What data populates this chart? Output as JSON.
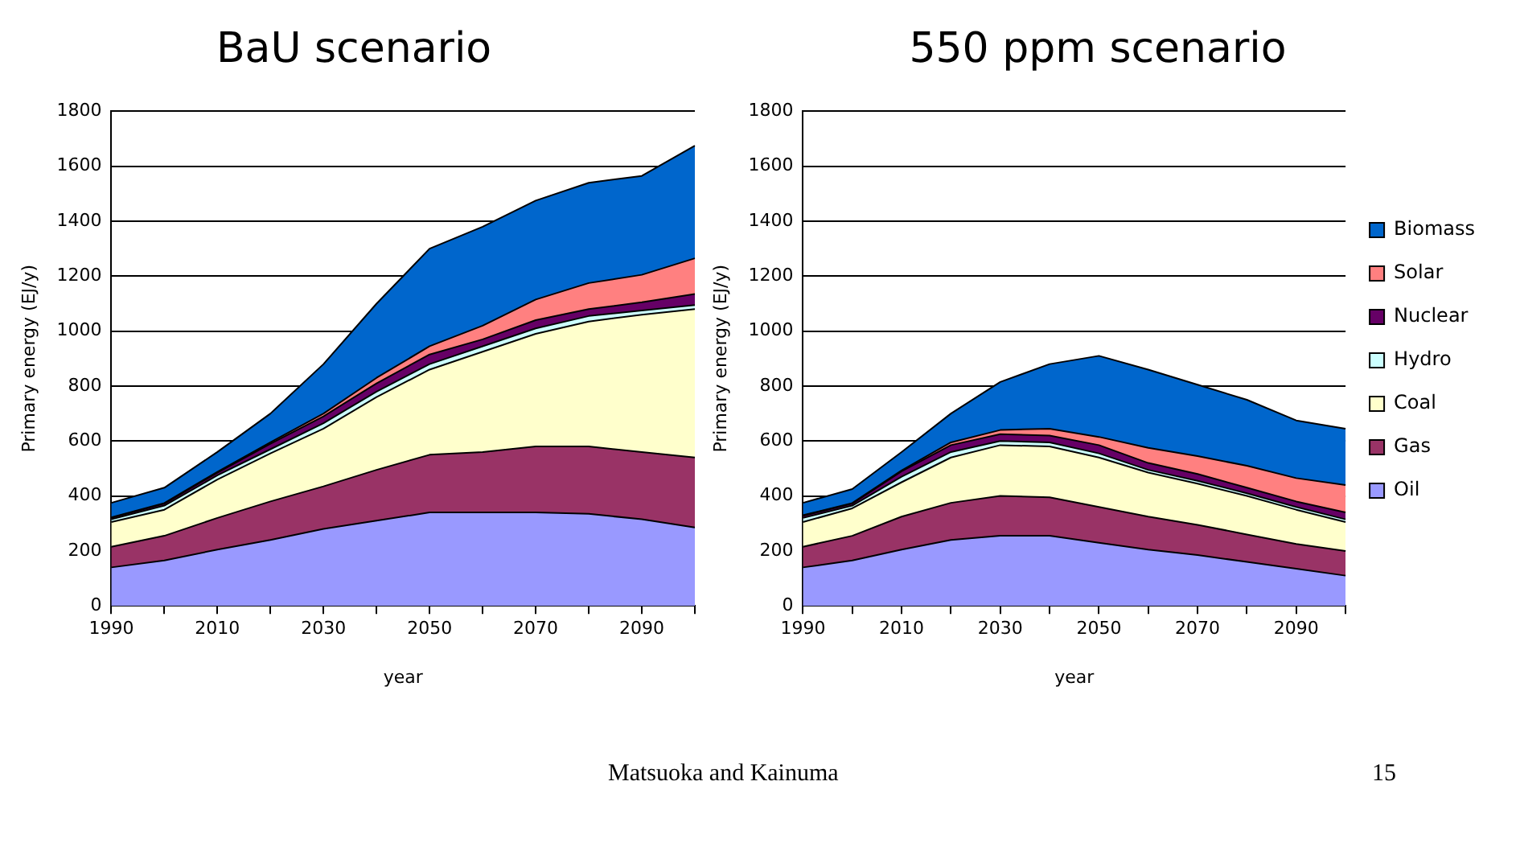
{
  "chart_data": [
    {
      "type": "area",
      "title": "BaU scenario",
      "xlabel": "year",
      "ylabel": "Primary energy (EJ/y)",
      "stacked": true,
      "grid": "y",
      "legend": false,
      "categories": [
        "1990",
        null,
        "2010",
        null,
        "2030",
        null,
        "2050",
        null,
        "2070",
        null,
        "2090",
        null
      ],
      "ylim": [
        0,
        1800
      ],
      "yticks": [
        0,
        200,
        400,
        600,
        800,
        1000,
        1200,
        1400,
        1600,
        1800
      ],
      "series": [
        {
          "color": "#9999ff",
          "values": [
            140,
            165,
            205,
            240,
            280,
            310,
            340,
            340,
            340,
            335,
            315,
            285
          ]
        },
        {
          "color": "#993366",
          "values": [
            75,
            90,
            115,
            140,
            155,
            185,
            210,
            220,
            240,
            245,
            245,
            255
          ]
        },
        {
          "color": "#ffffcc",
          "values": [
            90,
            95,
            140,
            175,
            210,
            265,
            310,
            365,
            410,
            455,
            500,
            540
          ]
        },
        {
          "color": "#ccffff",
          "values": [
            10,
            15,
            15,
            15,
            20,
            20,
            20,
            20,
            20,
            20,
            15,
            15
          ]
        },
        {
          "color": "#660066",
          "values": [
            5,
            7,
            10,
            20,
            25,
            30,
            35,
            25,
            30,
            25,
            30,
            40
          ]
        },
        {
          "color": "#ff8080",
          "values": [
            2,
            2,
            3,
            5,
            10,
            20,
            30,
            50,
            75,
            95,
            100,
            130
          ]
        },
        {
          "color": "#0066cc",
          "values": [
            53,
            56,
            72,
            105,
            180,
            270,
            355,
            360,
            360,
            365,
            360,
            410
          ]
        }
      ]
    },
    {
      "type": "area",
      "title": "550 ppm scenario",
      "xlabel": "year",
      "ylabel": "Primary energy (EJ/y)",
      "stacked": true,
      "grid": "y",
      "legend": "right",
      "categories": [
        "1990",
        null,
        "2010",
        null,
        "2030",
        null,
        "2050",
        null,
        "2070",
        null,
        "2090",
        null
      ],
      "ylim": [
        0,
        1800
      ],
      "yticks": [
        0,
        200,
        400,
        600,
        800,
        1000,
        1200,
        1400,
        1600,
        1800
      ],
      "annotations": [
        "Matsuoka and Kainuma",
        "15"
      ],
      "series": [
        {
          "name": "Oil",
          "color": "#9999ff",
          "values": [
            140,
            165,
            205,
            240,
            255,
            255,
            230,
            205,
            185,
            160,
            135,
            110
          ]
        },
        {
          "name": "Gas",
          "color": "#993366",
          "values": [
            75,
            90,
            120,
            135,
            145,
            140,
            130,
            120,
            110,
            100,
            90,
            90
          ]
        },
        {
          "name": "Coal",
          "color": "#ffffcc",
          "values": [
            90,
            100,
            125,
            165,
            185,
            185,
            180,
            160,
            150,
            140,
            125,
            105
          ]
        },
        {
          "name": "Hydro",
          "color": "#ccffff",
          "values": [
            15,
            10,
            20,
            20,
            15,
            15,
            15,
            10,
            10,
            10,
            10,
            10
          ]
        },
        {
          "name": "Nuclear",
          "color": "#660066",
          "values": [
            8,
            7,
            20,
            25,
            25,
            25,
            30,
            25,
            25,
            20,
            20,
            25
          ]
        },
        {
          "name": "Solar",
          "color": "#ff8080",
          "values": [
            2,
            2,
            3,
            10,
            15,
            25,
            30,
            55,
            65,
            80,
            85,
            100
          ]
        },
        {
          "name": "Biomass",
          "color": "#0066cc",
          "values": [
            45,
            51,
            67,
            105,
            175,
            235,
            295,
            285,
            260,
            240,
            210,
            205
          ]
        }
      ]
    }
  ]
}
